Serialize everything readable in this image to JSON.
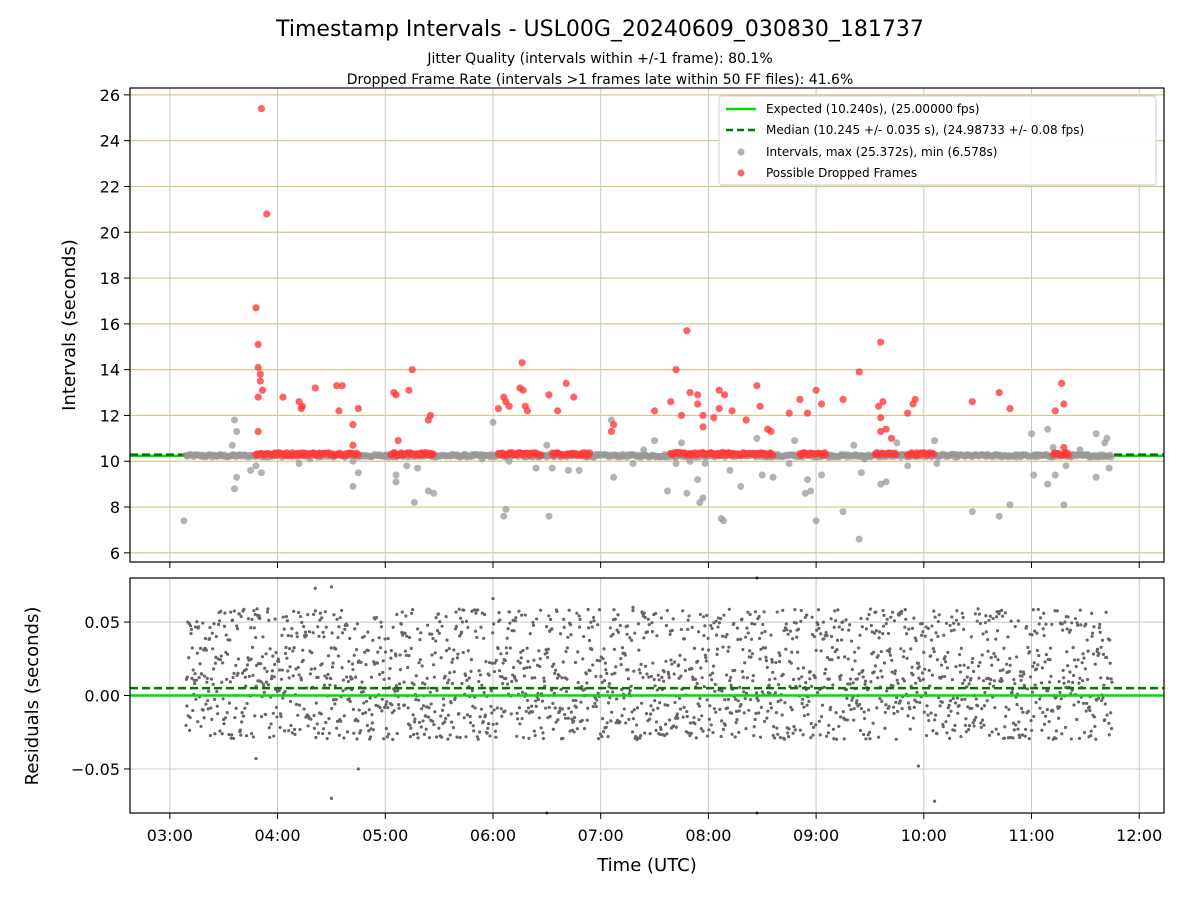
{
  "chart_data": [
    {
      "type": "scatter",
      "panel": "intervals",
      "title": "Timestamp Intervals - USL00G_20240609_030830_181737",
      "subtitles": [
        "Jitter Quality (intervals within +/-1 frame): 80.1%",
        "Dropped Frame Rate (intervals >1 frames late within 50 FF files): 41.6%"
      ],
      "ylabel": "Intervals (seconds)",
      "xlabel": "",
      "xlim_hours": [
        2.63,
        12.23
      ],
      "ylim": [
        5.6,
        26.3
      ],
      "grid": true,
      "y_ticks": [
        6,
        8,
        10,
        12,
        14,
        16,
        18,
        20,
        22,
        24,
        26
      ],
      "x_ticks_hours": [
        3,
        4,
        5,
        6,
        7,
        8,
        9,
        10,
        11,
        12
      ],
      "x_tick_labels": [
        "03:00",
        "04:00",
        "05:00",
        "06:00",
        "07:00",
        "08:00",
        "09:00",
        "10:00",
        "11:00",
        "12:00"
      ],
      "legend_position": "top-right",
      "legend": [
        "Expected (10.240s), (25.00000 fps)",
        "Median (10.245 +/- 0.035 s), (24.98733 +/- 0.08 fps)",
        "Intervals, max (25.372s), min (6.578s)",
        "Possible Dropped Frames"
      ],
      "expected_line": 10.24,
      "median_line": 10.245,
      "colors": {
        "expected": "#00dd00",
        "median": "#007700",
        "intervals": "#999999",
        "dropped": "#ff3b3b",
        "ygrid": "#d8c58a",
        "xgrid": "#c8c8c8"
      },
      "series": [
        {
          "name": "Intervals, max (25.372s), min (6.578s)",
          "points": [
            [
              3.13,
              7.4
            ],
            [
              3.6,
              11.8
            ],
            [
              3.62,
              11.3
            ],
            [
              3.58,
              10.7
            ],
            [
              3.6,
              8.8
            ],
            [
              3.62,
              9.3
            ],
            [
              3.75,
              9.6
            ],
            [
              3.8,
              9.8
            ],
            [
              3.85,
              9.5
            ],
            [
              4.2,
              9.9
            ],
            [
              4.3,
              10.1
            ],
            [
              4.7,
              8.9
            ],
            [
              4.75,
              9.5
            ],
            [
              4.7,
              10.0
            ],
            [
              5.1,
              9.1
            ],
            [
              5.1,
              9.4
            ],
            [
              5.2,
              9.8
            ],
            [
              5.27,
              8.2
            ],
            [
              5.3,
              9.7
            ],
            [
              5.4,
              8.7
            ],
            [
              5.45,
              8.6
            ],
            [
              5.9,
              10.1
            ],
            [
              6.0,
              11.7
            ],
            [
              6.1,
              7.6
            ],
            [
              6.12,
              7.9
            ],
            [
              6.15,
              10.0
            ],
            [
              6.4,
              9.7
            ],
            [
              6.5,
              10.7
            ],
            [
              6.52,
              7.6
            ],
            [
              6.55,
              9.7
            ],
            [
              6.7,
              9.6
            ],
            [
              6.8,
              9.6
            ],
            [
              7.1,
              11.8
            ],
            [
              7.12,
              9.3
            ],
            [
              7.3,
              9.9
            ],
            [
              7.4,
              10.5
            ],
            [
              7.5,
              10.9
            ],
            [
              7.6,
              10.2
            ],
            [
              7.62,
              8.7
            ],
            [
              7.7,
              9.9
            ],
            [
              7.75,
              10.8
            ],
            [
              7.8,
              8.6
            ],
            [
              7.83,
              10.0
            ],
            [
              7.9,
              9.2
            ],
            [
              7.92,
              8.2
            ],
            [
              7.95,
              8.4
            ],
            [
              7.97,
              9.9
            ],
            [
              8.12,
              7.5
            ],
            [
              8.14,
              7.4
            ],
            [
              8.2,
              9.6
            ],
            [
              8.3,
              8.9
            ],
            [
              8.45,
              11.0
            ],
            [
              8.5,
              9.4
            ],
            [
              8.6,
              9.3
            ],
            [
              8.75,
              9.9
            ],
            [
              8.8,
              10.9
            ],
            [
              8.9,
              8.6
            ],
            [
              8.92,
              9.2
            ],
            [
              8.95,
              8.7
            ],
            [
              9.0,
              7.4
            ],
            [
              9.05,
              9.4
            ],
            [
              9.25,
              7.8
            ],
            [
              9.35,
              10.7
            ],
            [
              9.4,
              6.6
            ],
            [
              9.42,
              9.5
            ],
            [
              9.45,
              10.1
            ],
            [
              9.6,
              9.0
            ],
            [
              9.65,
              9.1
            ],
            [
              9.75,
              10.8
            ],
            [
              9.8,
              10.3
            ],
            [
              9.85,
              9.8
            ],
            [
              10.1,
              10.9
            ],
            [
              10.12,
              9.9
            ],
            [
              10.45,
              7.8
            ],
            [
              10.7,
              7.6
            ],
            [
              10.8,
              8.1
            ],
            [
              11.0,
              11.2
            ],
            [
              11.02,
              9.4
            ],
            [
              11.15,
              11.4
            ],
            [
              11.15,
              9.0
            ],
            [
              11.2,
              10.6
            ],
            [
              11.22,
              9.4
            ],
            [
              11.3,
              8.1
            ],
            [
              11.32,
              9.8
            ],
            [
              11.45,
              10.5
            ],
            [
              11.6,
              9.3
            ],
            [
              11.6,
              11.2
            ],
            [
              11.68,
              10.8
            ],
            [
              11.7,
              11.0
            ],
            [
              11.72,
              9.7
            ]
          ]
        },
        {
          "name": "Possible Dropped Frames",
          "points": [
            [
              3.85,
              25.4
            ],
            [
              3.9,
              20.8
            ],
            [
              3.8,
              16.7
            ],
            [
              3.82,
              15.1
            ],
            [
              3.82,
              14.1
            ],
            [
              3.84,
              13.8
            ],
            [
              3.84,
              13.5
            ],
            [
              3.86,
              13.1
            ],
            [
              3.82,
              12.8
            ],
            [
              3.82,
              11.3
            ],
            [
              4.05,
              12.8
            ],
            [
              4.2,
              12.6
            ],
            [
              4.22,
              12.3
            ],
            [
              4.23,
              12.4
            ],
            [
              4.35,
              13.2
            ],
            [
              4.55,
              13.3
            ],
            [
              4.6,
              13.3
            ],
            [
              4.57,
              12.2
            ],
            [
              4.7,
              11.6
            ],
            [
              4.75,
              12.3
            ],
            [
              4.7,
              10.7
            ],
            [
              5.08,
              13.0
            ],
            [
              5.1,
              12.9
            ],
            [
              5.22,
              13.1
            ],
            [
              5.12,
              10.9
            ],
            [
              5.25,
              14.0
            ],
            [
              5.4,
              11.8
            ],
            [
              5.42,
              12.0
            ],
            [
              6.05,
              12.3
            ],
            [
              6.1,
              12.8
            ],
            [
              6.12,
              12.6
            ],
            [
              6.15,
              12.4
            ],
            [
              6.25,
              13.2
            ],
            [
              6.28,
              13.1
            ],
            [
              6.27,
              14.3
            ],
            [
              6.3,
              12.4
            ],
            [
              6.32,
              12.2
            ],
            [
              6.52,
              12.9
            ],
            [
              6.6,
              12.2
            ],
            [
              6.68,
              13.4
            ],
            [
              6.75,
              12.8
            ],
            [
              7.1,
              11.3
            ],
            [
              7.12,
              11.6
            ],
            [
              7.5,
              12.2
            ],
            [
              7.65,
              12.6
            ],
            [
              7.7,
              14.0
            ],
            [
              7.75,
              12.0
            ],
            [
              7.8,
              15.7
            ],
            [
              7.83,
              13.0
            ],
            [
              7.9,
              12.5
            ],
            [
              7.95,
              11.5
            ],
            [
              7.95,
              12.0
            ],
            [
              7.9,
              12.9
            ],
            [
              8.05,
              11.9
            ],
            [
              8.1,
              13.1
            ],
            [
              8.15,
              12.9
            ],
            [
              8.1,
              12.3
            ],
            [
              8.22,
              12.2
            ],
            [
              8.35,
              11.8
            ],
            [
              8.45,
              13.3
            ],
            [
              8.48,
              12.4
            ],
            [
              8.55,
              11.4
            ],
            [
              8.58,
              11.3
            ],
            [
              8.75,
              12.1
            ],
            [
              8.85,
              12.7
            ],
            [
              8.92,
              12.1
            ],
            [
              9.0,
              13.1
            ],
            [
              9.05,
              12.5
            ],
            [
              9.25,
              12.7
            ],
            [
              9.4,
              13.9
            ],
            [
              9.6,
              15.2
            ],
            [
              9.58,
              12.4
            ],
            [
              9.62,
              12.6
            ],
            [
              9.6,
              11.9
            ],
            [
              9.6,
              11.3
            ],
            [
              9.65,
              11.4
            ],
            [
              9.7,
              11.0
            ],
            [
              9.85,
              12.1
            ],
            [
              9.9,
              12.5
            ],
            [
              9.92,
              12.7
            ],
            [
              10.45,
              12.6
            ],
            [
              10.7,
              13.0
            ],
            [
              10.8,
              12.3
            ],
            [
              11.22,
              12.2
            ],
            [
              11.28,
              13.4
            ],
            [
              11.3,
              12.5
            ],
            [
              11.3,
              10.6
            ]
          ]
        }
      ]
    },
    {
      "type": "scatter",
      "panel": "residuals",
      "xlabel": "Time (UTC)",
      "ylabel": "Residuals (seconds)",
      "xlim_hours": [
        2.63,
        12.23
      ],
      "ylim": [
        -0.08,
        0.08
      ],
      "grid": true,
      "y_ticks": [
        0.05,
        0.0,
        -0.05
      ],
      "y_tick_labels": [
        "0.05",
        "0.00",
        "−0.05"
      ],
      "x_ticks_hours": [
        3,
        4,
        5,
        6,
        7,
        8,
        9,
        10,
        11,
        12
      ],
      "x_tick_labels": [
        "03:00",
        "04:00",
        "05:00",
        "06:00",
        "07:00",
        "08:00",
        "09:00",
        "10:00",
        "11:00",
        "12:00"
      ],
      "expected_line": 0.0,
      "median_line": 0.005,
      "residual_time_range_hours": [
        3.15,
        11.75
      ],
      "residual_bands": [
        0.048,
        0.022,
        0.002,
        -0.019
      ],
      "colors": {
        "expected": "#00dd00",
        "median": "#007700",
        "points": "#666666",
        "grid": "#c8c8c8"
      },
      "outlier_points": [
        [
          4.35,
          0.073
        ],
        [
          4.5,
          0.074
        ],
        [
          4.5,
          -0.07
        ],
        [
          4.75,
          -0.05
        ],
        [
          6.0,
          0.066
        ],
        [
          8.45,
          0.08
        ],
        [
          8.45,
          -0.08
        ],
        [
          9.95,
          -0.048
        ],
        [
          10.1,
          -0.072
        ],
        [
          6.5,
          -0.08
        ],
        [
          7.3,
          0.06
        ],
        [
          3.8,
          -0.043
        ]
      ]
    }
  ]
}
